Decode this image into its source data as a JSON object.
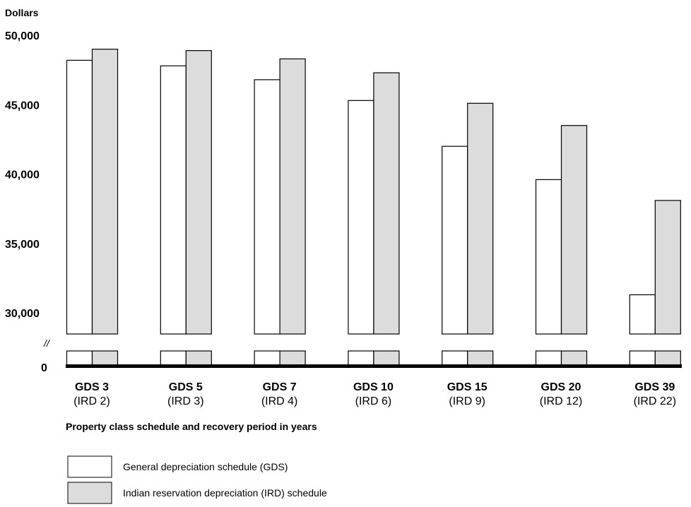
{
  "chart_data": {
    "type": "bar",
    "ylabel": "Dollars",
    "xlabel": "Property class schedule and recovery period in years",
    "y_ticks": [
      "50,000",
      "45,000",
      "40,000",
      "35,000",
      "30,000"
    ],
    "y_tick_values": [
      50000,
      45000,
      40000,
      35000,
      30000
    ],
    "y_zero_label": "0",
    "axis_break_label": "//",
    "ylim": [
      0,
      50000
    ],
    "y_break_range": [
      0,
      28500
    ],
    "categories": [
      {
        "main": "GDS 3",
        "sub": "(IRD 2)"
      },
      {
        "main": "GDS 5",
        "sub": "(IRD 3)"
      },
      {
        "main": "GDS 7",
        "sub": "(IRD 4)"
      },
      {
        "main": "GDS 10",
        "sub": "(IRD 6)"
      },
      {
        "main": "GDS 15",
        "sub": "(IRD 9)"
      },
      {
        "main": "GDS 20",
        "sub": "(IRD 12)"
      },
      {
        "main": "GDS 39",
        "sub": "(IRD 22)"
      }
    ],
    "series": [
      {
        "name": "General depreciation schedule (GDS)",
        "color": "#ffffff",
        "values": [
          48200,
          47800,
          46800,
          45300,
          42000,
          39600,
          31300
        ]
      },
      {
        "name": "Indian reservation depreciation (IRD) schedule",
        "color": "#dcdcdc",
        "values": [
          49000,
          48900,
          48300,
          47300,
          45100,
          43500,
          38100
        ]
      }
    ],
    "grid": false,
    "legend_position": "bottom-left"
  }
}
